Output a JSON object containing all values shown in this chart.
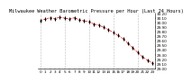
{
  "title": "Milwaukee Weather Barometric Pressure per Hour (Last 24 Hours)",
  "hours": [
    0,
    1,
    2,
    3,
    4,
    5,
    6,
    7,
    8,
    9,
    10,
    11,
    12,
    13,
    14,
    15,
    16,
    17,
    18,
    19,
    20,
    21,
    22,
    23
  ],
  "pressure": [
    30.05,
    30.08,
    30.11,
    30.09,
    30.12,
    30.1,
    30.08,
    30.11,
    30.06,
    30.04,
    30.02,
    29.97,
    29.95,
    29.9,
    29.85,
    29.78,
    29.72,
    29.65,
    29.55,
    29.45,
    29.35,
    29.25,
    29.18,
    29.12
  ],
  "line_color": "#ff0000",
  "marker_color": "#000000",
  "bg_color": "#ffffff",
  "grid_color": "#808080",
  "title_fontsize": 3.8,
  "tick_fontsize": 3.0,
  "ylim_min": 29.0,
  "ylim_max": 30.2,
  "ytick_step": 0.1,
  "grid_interval": 5
}
